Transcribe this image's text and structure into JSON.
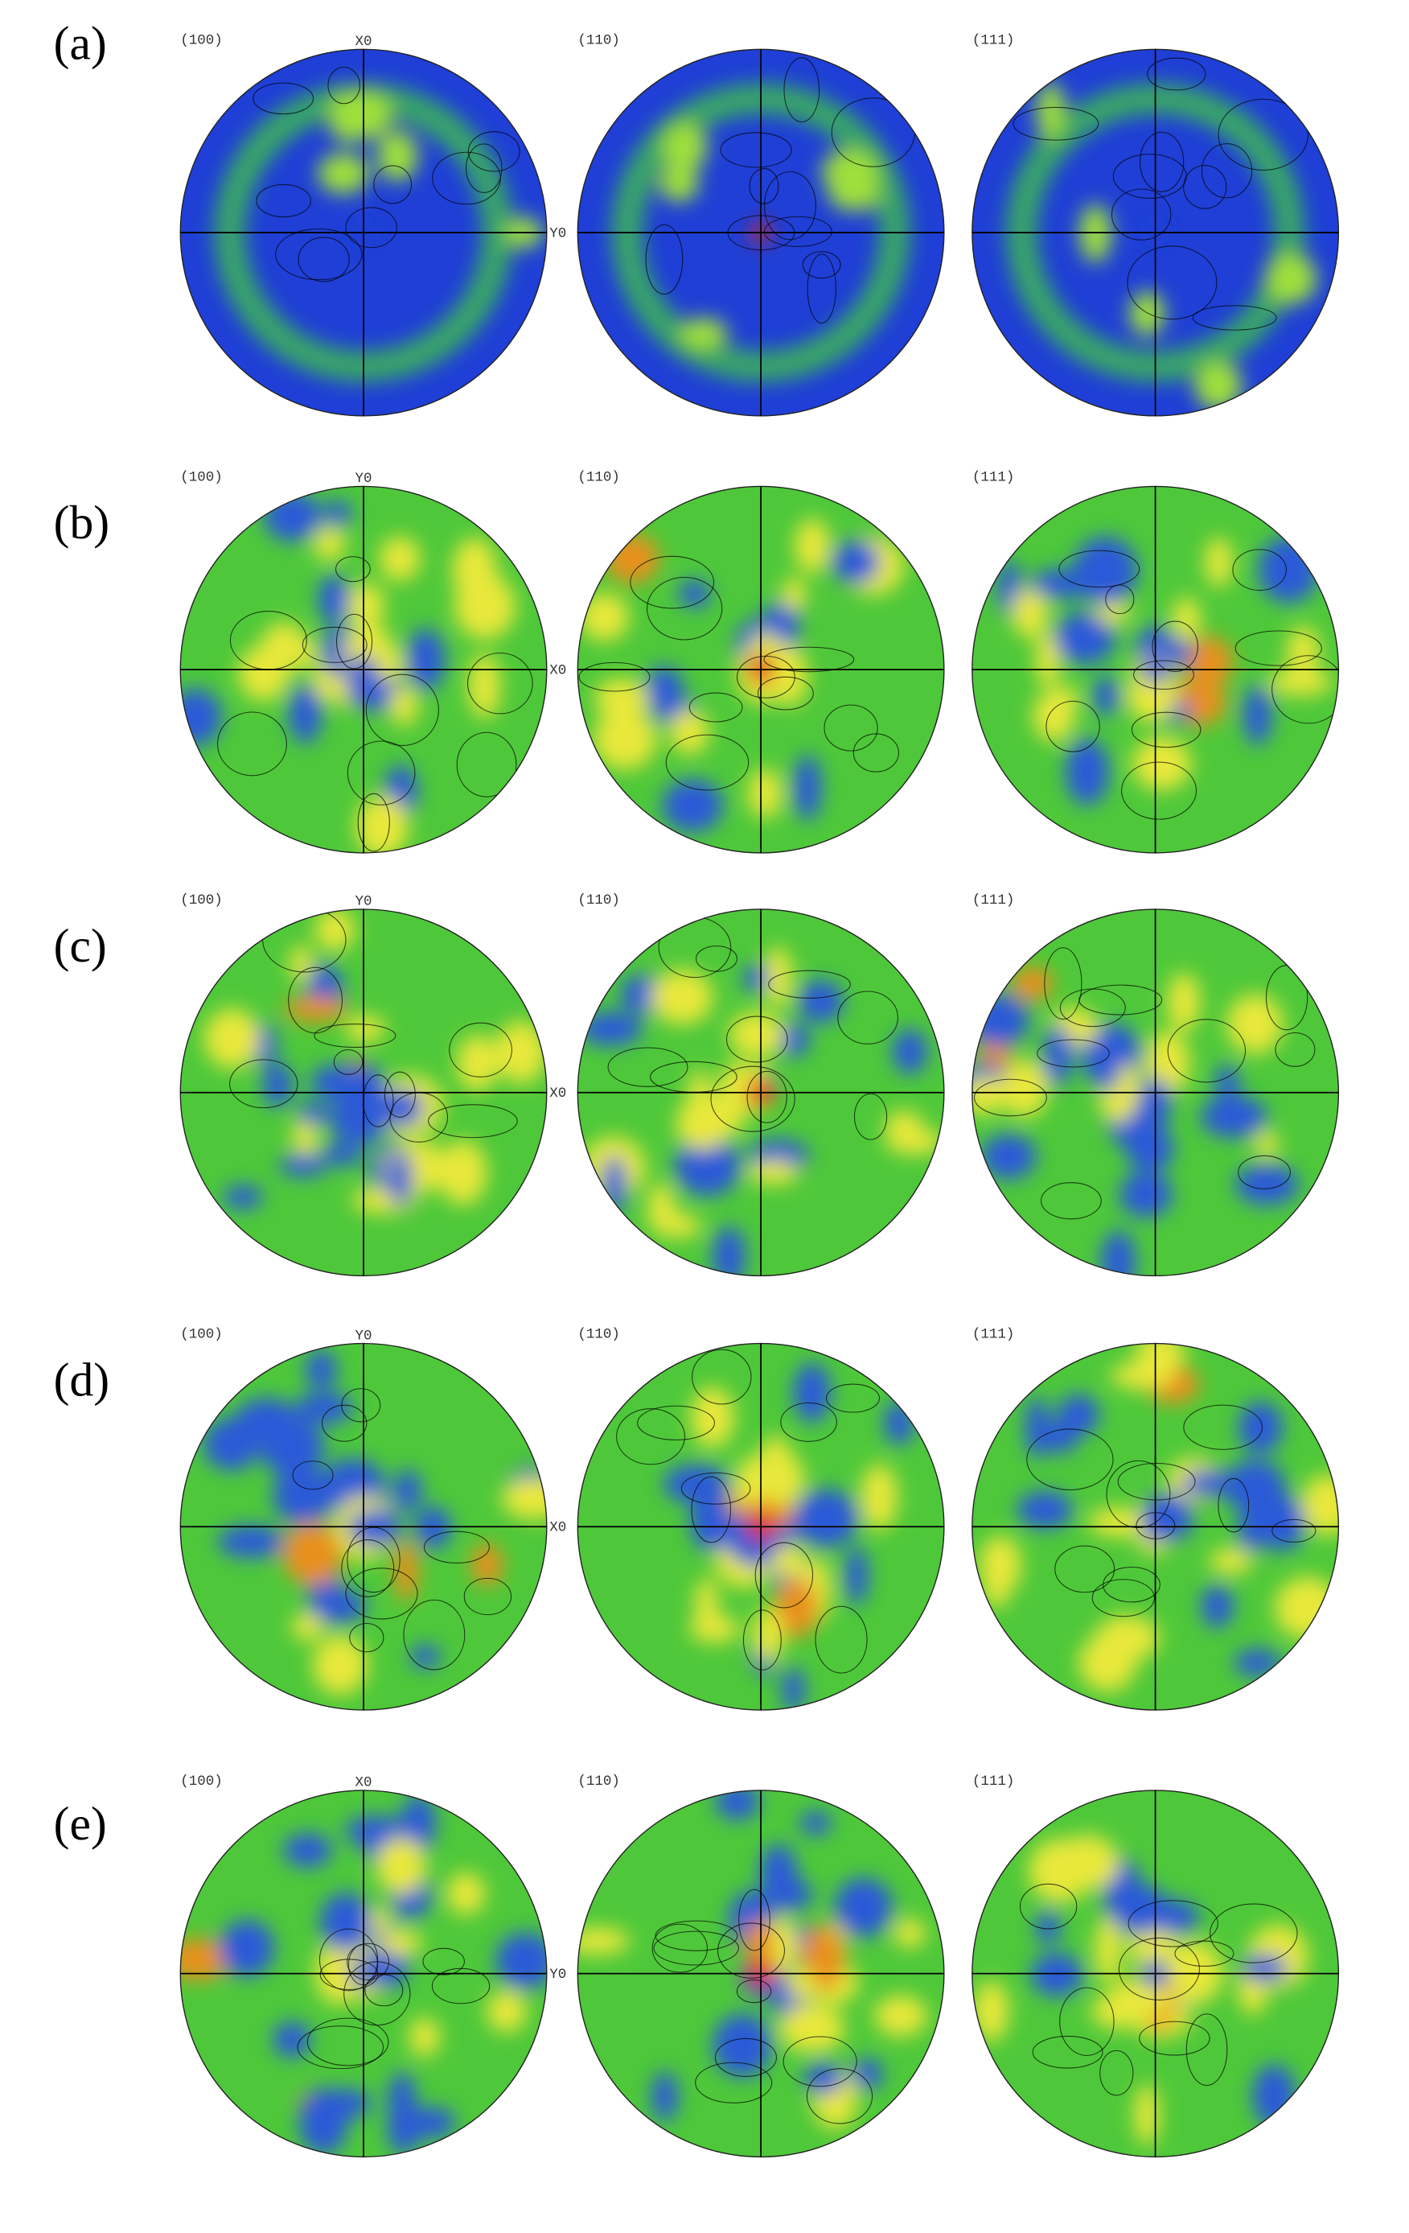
{
  "figure": {
    "rows": [
      {
        "label": "(a)",
        "panels": [
          {
            "title": "(100)",
            "top_axis": "X0",
            "side_axis": "Y0"
          },
          {
            "title": "(110)"
          },
          {
            "title": "(111)"
          }
        ]
      },
      {
        "label": "(b)",
        "panels": [
          {
            "title": "(100)",
            "top_axis": "Y0",
            "side_axis": "X0"
          },
          {
            "title": "(110)"
          },
          {
            "title": "(111)"
          }
        ]
      },
      {
        "label": "(c)",
        "panels": [
          {
            "title": "(100)",
            "top_axis": "Y0",
            "side_axis": "X0"
          },
          {
            "title": "(110)"
          },
          {
            "title": "(111)"
          }
        ]
      },
      {
        "label": "(d)",
        "panels": [
          {
            "title": "(100)",
            "top_axis": "Y0",
            "side_axis": "X0"
          },
          {
            "title": "(110)"
          },
          {
            "title": "(111)"
          }
        ]
      },
      {
        "label": "(e)",
        "panels": [
          {
            "title": "(100)",
            "top_axis": "X0",
            "side_axis": "Y0"
          },
          {
            "title": "(110)"
          },
          {
            "title": "(111)"
          }
        ]
      }
    ]
  }
}
